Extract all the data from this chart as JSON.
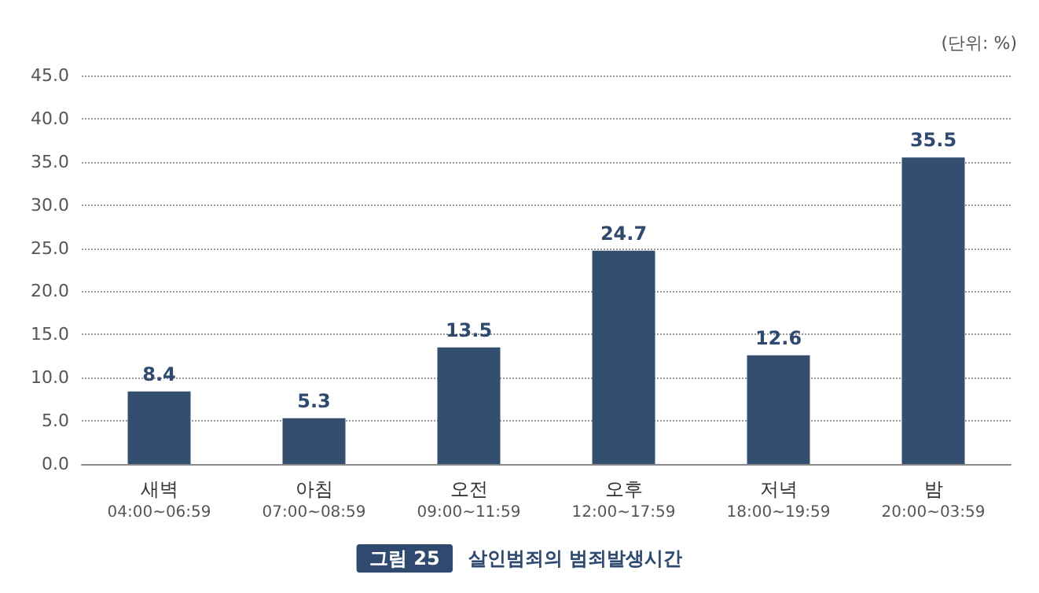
{
  "chart_data": {
    "type": "bar",
    "title": "살인범죄의 범죄발생시간",
    "subtitle": "그림 25",
    "annotations": [
      "(단위: %)"
    ],
    "categories": [
      "새벽\n04:00~06:59",
      "아침\n07:00~08:59",
      "오전\n09:00~11:59",
      "오후\n12:00~17:59",
      "저녁\n18:00~19:59",
      "밤\n20:00~03:59"
    ],
    "values": [
      8.4,
      5.3,
      13.5,
      24.7,
      12.6,
      35.5
    ],
    "color": "#334e6e",
    "ylim": [
      0,
      45
    ],
    "yticks": [
      {
        "value": 0,
        "label": "0.0"
      },
      {
        "value": 5,
        "label": "5.0"
      },
      {
        "value": 10,
        "label": "10.0"
      },
      {
        "value": 15,
        "label": "15.0"
      },
      {
        "value": 20,
        "label": "20.0"
      },
      {
        "value": 25,
        "label": "25.0"
      },
      {
        "value": 30,
        "label": "30.0"
      },
      {
        "value": 35,
        "label": "35.0"
      },
      {
        "value": 40,
        "label": "40.0"
      },
      {
        "value": 45,
        "label": "45.0"
      }
    ],
    "grid": "y",
    "data_labels": true
  }
}
